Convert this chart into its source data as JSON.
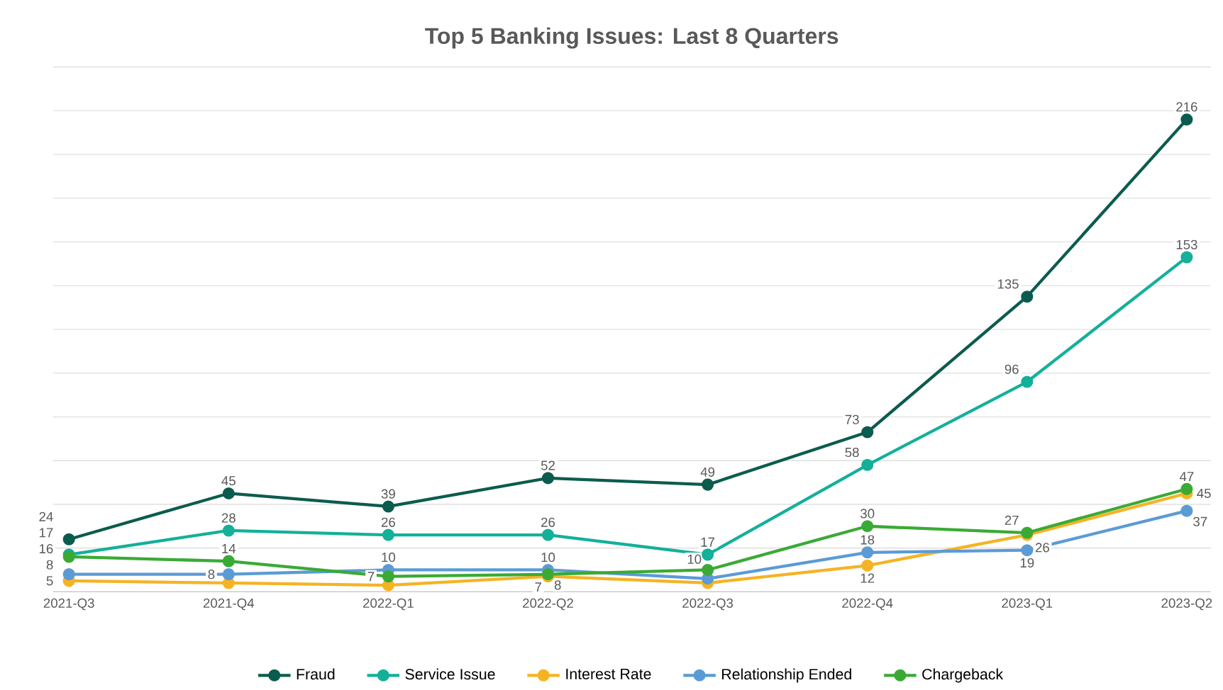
{
  "chart_data": {
    "type": "line",
    "title": "Top 5 Banking Issues: Last 8 Quarters",
    "categories": [
      "2021-Q3",
      "2021-Q4",
      "2022-Q1",
      "2022-Q2",
      "2022-Q3",
      "2022-Q4",
      "2023-Q1",
      "2023-Q2"
    ],
    "series": [
      {
        "name": "Fraud",
        "color": "#0b5c4e",
        "values": [
          24,
          45,
          39,
          52,
          49,
          73,
          135,
          216
        ],
        "value_labels": [
          "24",
          "45",
          "39",
          "52",
          "49",
          "73",
          "135",
          "216"
        ]
      },
      {
        "name": "Service Issue",
        "color": "#13b09a",
        "values": [
          17,
          28,
          26,
          26,
          17,
          58,
          96,
          153
        ],
        "value_labels": [
          "17",
          "28",
          "26",
          "26",
          "17",
          "58",
          "96",
          "153"
        ]
      },
      {
        "name": "Interest Rate",
        "color": "#f5b324",
        "values": [
          5,
          4,
          3,
          7,
          4,
          12,
          26,
          45
        ],
        "value_labels": [
          "5",
          null,
          null,
          "7",
          null,
          "12",
          "26",
          "45"
        ]
      },
      {
        "name": "Relationship Ended",
        "color": "#5b9bd5",
        "values": [
          8,
          8,
          10,
          10,
          6,
          18,
          19,
          37
        ],
        "value_labels": [
          "8",
          "8",
          "10",
          "10",
          null,
          "18",
          "19",
          "37"
        ]
      },
      {
        "name": "Chargeback",
        "color": "#3aaa35",
        "values": [
          16,
          14,
          7,
          8,
          10,
          30,
          27,
          47
        ],
        "value_labels": [
          "16",
          "14",
          "7",
          "8",
          "10",
          "30",
          "27",
          "47"
        ]
      }
    ],
    "grid": "y",
    "legend": "bottom",
    "tick_labels": "x",
    "marker": "circle",
    "line_style": "solid"
  }
}
